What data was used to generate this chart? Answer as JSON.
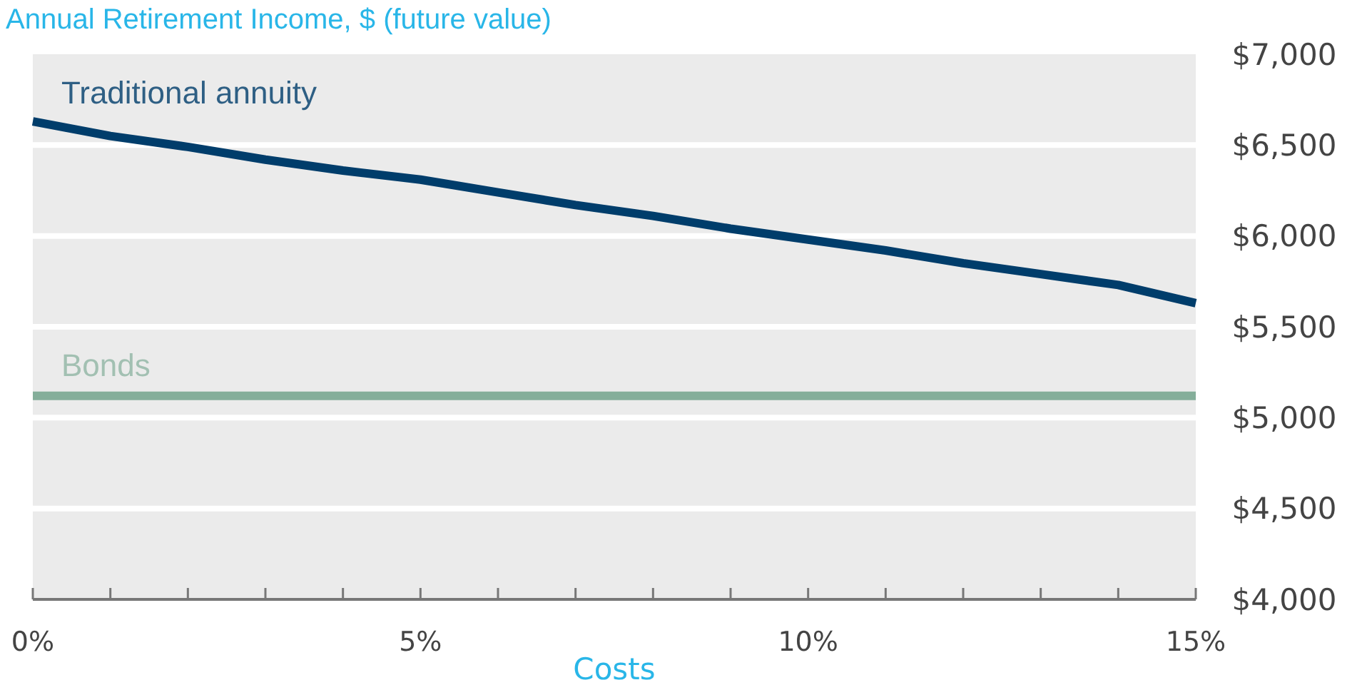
{
  "chart_data": {
    "type": "line",
    "title": "Annual Retirement Income, $ (future value)",
    "xlabel": "Costs",
    "x": [
      0,
      1,
      2,
      3,
      4,
      5,
      6,
      7,
      8,
      9,
      10,
      11,
      12,
      13,
      14,
      15
    ],
    "series": [
      {
        "name": "Traditional annuity",
        "color": "#003d6b",
        "values": [
          6630,
          6550,
          6490,
          6420,
          6360,
          6310,
          6240,
          6170,
          6110,
          6040,
          5980,
          5920,
          5850,
          5790,
          5730,
          5630
        ]
      },
      {
        "name": "Bonds",
        "color": "#84ae9a",
        "values": [
          5120,
          5120,
          5120,
          5120,
          5120,
          5120,
          5120,
          5120,
          5120,
          5120,
          5120,
          5120,
          5120,
          5120,
          5120,
          5120
        ]
      }
    ],
    "xlim": [
      0,
      15
    ],
    "xticks": [
      {
        "value": 0,
        "label": "0%"
      },
      {
        "value": 1,
        "label": null
      },
      {
        "value": 2,
        "label": null
      },
      {
        "value": 3,
        "label": null
      },
      {
        "value": 4,
        "label": null
      },
      {
        "value": 5,
        "label": "5%"
      },
      {
        "value": 6,
        "label": null
      },
      {
        "value": 7,
        "label": null
      },
      {
        "value": 8,
        "label": null
      },
      {
        "value": 9,
        "label": null
      },
      {
        "value": 10,
        "label": "10%"
      },
      {
        "value": 11,
        "label": null
      },
      {
        "value": 12,
        "label": null
      },
      {
        "value": 13,
        "label": null
      },
      {
        "value": 14,
        "label": null
      },
      {
        "value": 15,
        "label": "15%"
      }
    ],
    "ylim": [
      4000,
      7000
    ],
    "yticks": [
      {
        "value": 4000,
        "label": "$4,000"
      },
      {
        "value": 4500,
        "label": "$4,500"
      },
      {
        "value": 5000,
        "label": "$5,000"
      },
      {
        "value": 5500,
        "label": "$5,500"
      },
      {
        "value": 6000,
        "label": "$6,000"
      },
      {
        "value": 6500,
        "label": "$6,500"
      },
      {
        "value": 7000,
        "label": "$7,000"
      }
    ],
    "grid": "y",
    "marker": "none",
    "line_style": "solid"
  }
}
